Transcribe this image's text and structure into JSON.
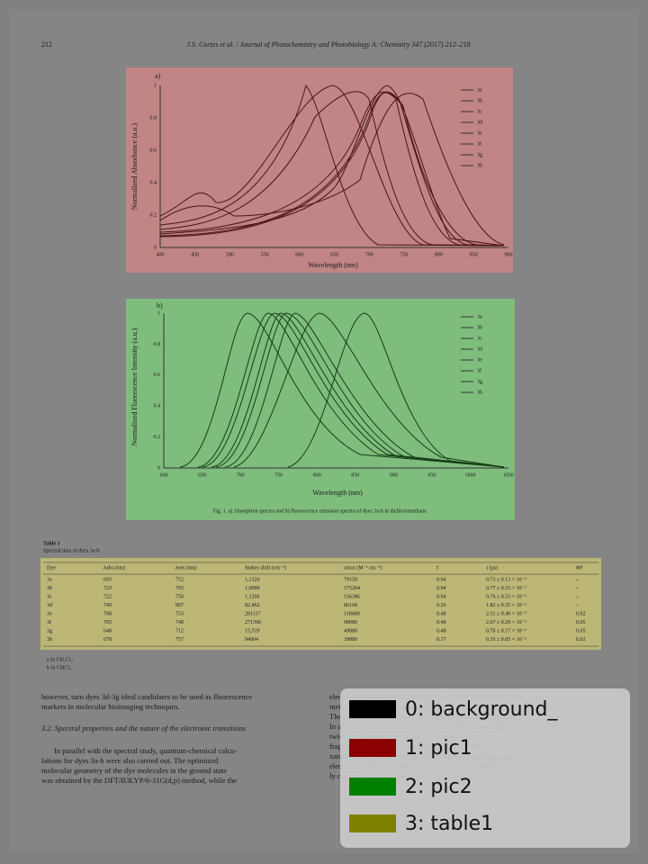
{
  "header": {
    "page": "212",
    "journal": "J.S. Cortes et al. / Journal of Photochemistry and Photobiology A: Chemistry 347 (2017) 212–218"
  },
  "figure_a": {
    "label": "a)",
    "y_label": "Normalized Absorbance (a.u.)",
    "x_label": "Wavelength (nm)",
    "x_ticks": [
      "400",
      "450",
      "500",
      "550",
      "600",
      "650",
      "700",
      "750",
      "800",
      "850",
      "900"
    ],
    "y_ticks": [
      "0",
      "0.2",
      "0.4",
      "0.6",
      "0.8",
      "1"
    ],
    "legend": [
      "3a",
      "3b",
      "3c",
      "3d",
      "3e",
      "3f",
      "3g",
      "3h"
    ]
  },
  "figure_b": {
    "label": "b)",
    "y_label": "Normalized Fluorescence Intensity (a.u.)",
    "x_label": "Wavelength (nm)",
    "x_ticks": [
      "600",
      "650",
      "700",
      "750",
      "800",
      "850",
      "900",
      "950",
      "1000",
      "1050"
    ],
    "y_ticks": [
      "0",
      "0.2",
      "0.4",
      "0.6",
      "0.8",
      "1"
    ],
    "legend": [
      "3a",
      "3b",
      "3c",
      "3d",
      "3e",
      "3f",
      "3g",
      "3h"
    ],
    "caption": "Fig. 1. a) Absorption spectra and b) fluorescence emission spectra of dyes 3a-h in dichloromethane."
  },
  "table": {
    "label": "Table 1",
    "title": "Spectral data of dyes 3a-h.",
    "columns": [
      "Dye",
      "λabs (nm)",
      "λem (nm)",
      "Stokes shift (cm⁻¹)",
      "εmax (M⁻¹ cm⁻¹)",
      "f",
      "τ (ps)",
      "ΦF"
    ],
    "rows": [
      [
        "3a",
        "693",
        "752",
        "1,1320",
        "79150",
        "0.94",
        "0.73 ± 0.13 × 10⁻²",
        "–"
      ],
      [
        "3b",
        "723",
        "765",
        "1,0000",
        "175204",
        "0.94",
        "0.77 ± 0.33 × 10⁻²",
        "–"
      ],
      [
        "3c",
        "722",
        "750",
        "1,1206",
        "156386",
        "0.94",
        "0.76 ± 0.33 × 10⁻²",
        "–"
      ],
      [
        "3d",
        "749",
        "807",
        "82.462",
        "86168",
        "0.26",
        "1.82 ± 0.35 × 10⁻²",
        "–"
      ],
      [
        "3e",
        "708",
        "753",
        "281117",
        "118480",
        "0.48",
        "2.31 ± 0.49 × 10⁻²",
        "0.02"
      ],
      [
        "3f",
        "705",
        "748",
        "271390",
        "98080",
        "0.48",
        "2.67 ± 0.29 × 10⁻²",
        "0.05"
      ],
      [
        "3g",
        "648",
        "712",
        "15,519",
        "49880",
        "0.48",
        "0.70 ± 0.17 × 10⁻²",
        "0.05"
      ],
      [
        "3h",
        "678",
        "757",
        "94004",
        "39880",
        "0.37",
        "0.35 ± 0.05 × 10⁻²",
        "0.02"
      ]
    ],
    "footnotes": [
      "a In CH₂Cl₂.",
      "b In CHCl₃."
    ]
  },
  "body_left": [
    "however, turn dyes 3d-3g ideal candidates to be used as fluorescence",
    "markers in molecular bioimaging techniques.",
    "3.2. Spectral properties and the nature of the electronic transitions",
    "In parallel with the spectral study, quantum-chemical calcu-",
    "lations for dyes 3a-h were also carried out. The optimized",
    "molecular geometry of the dye molecules in the ground state",
    "was obtained by the DFT/B3LYP/6-31G(d,p) method, while the"
  ],
  "body_right": [
    "electronic transition characteristics were calculated by the same",
    "method at the TD-DFT level of theory [35].",
    "The optimized structures of dyes 3a-h are shown in Fig. S2.",
    "In all cases the benzoic acid moiety is highly twisted and",
    "twisted with respect to the 1,2,3,4-tetrahydroquinoline",
    "fragment with a dihedral angle of nearly 90°; both",
    "xanthene fragments are disposed orthogonally and hence no",
    "electronic conjugation between them occurs. Contrastingly, ful-",
    "ly conjugated dyes show coplanar rings and the 1,2,3,4-"
  ],
  "overlay_legend": [
    "0: background_",
    "1: pic1",
    "2: pic2",
    "3: table1"
  ]
}
